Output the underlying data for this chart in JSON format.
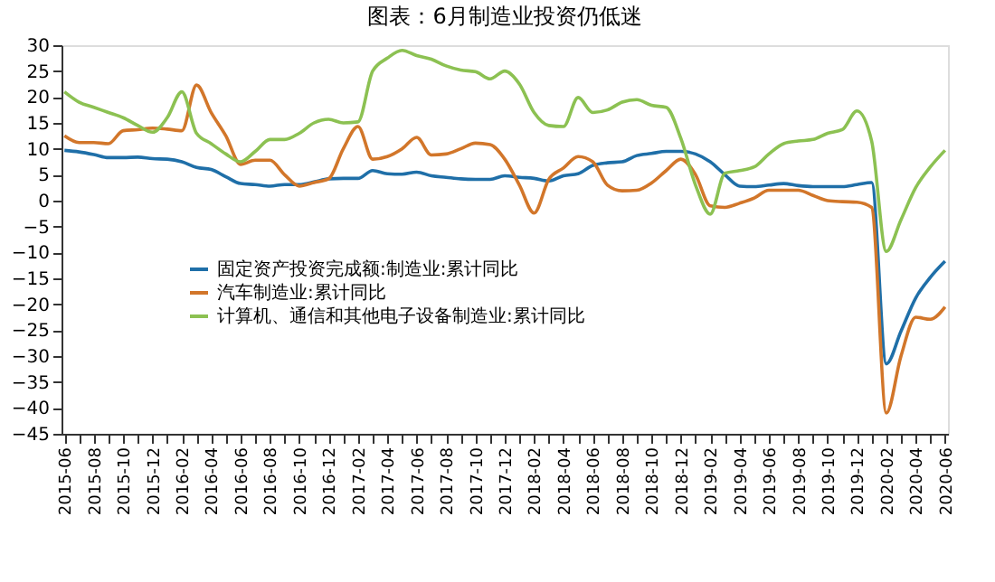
{
  "chart_data": {
    "type": "line",
    "title": "图表：6月制造业投资仍低迷",
    "categories": [
      "2015-06",
      null,
      "2015-08",
      null,
      "2015-10",
      null,
      "2015-12",
      null,
      "2016-02",
      null,
      "2016-04",
      null,
      "2016-06",
      null,
      "2016-08",
      null,
      "2016-10",
      null,
      "2016-12",
      null,
      "2017-02",
      null,
      "2017-04",
      null,
      "2017-06",
      null,
      "2017-08",
      null,
      "2017-10",
      null,
      "2017-12",
      null,
      "2018-02",
      null,
      "2018-04",
      null,
      "2018-06",
      null,
      "2018-08",
      null,
      "2018-10",
      null,
      "2018-12",
      null,
      "2019-02",
      null,
      "2019-04",
      null,
      "2019-06",
      null,
      "2019-08",
      null,
      "2019-10",
      null,
      "2019-12",
      null,
      "2020-02",
      null,
      "2020-04",
      null,
      "2020-06"
    ],
    "series": [
      {
        "name": "固定资产投资完成额:制造业:累计同比",
        "color": "#1f6fa8",
        "values": [
          9.7,
          9.4,
          8.9,
          8.3,
          8.3,
          8.4,
          8.1,
          8.0,
          7.5,
          6.4,
          6.0,
          4.6,
          3.3,
          3.1,
          2.8,
          3.1,
          3.1,
          3.6,
          4.2,
          4.3,
          4.3,
          5.8,
          5.2,
          5.1,
          5.5,
          4.8,
          4.5,
          4.2,
          4.1,
          4.1,
          4.8,
          4.5,
          4.3,
          3.8,
          4.8,
          5.2,
          6.8,
          7.3,
          7.5,
          8.7,
          9.1,
          9.5,
          9.5,
          9.0,
          7.5,
          5.0,
          2.8,
          2.7,
          3.0,
          3.3,
          2.9,
          2.7,
          2.7,
          2.7,
          3.1,
          3.5,
          -31.5,
          -25.2,
          -18.8,
          -14.8,
          -11.7
        ]
      },
      {
        "name": "汽车制造业:累计同比",
        "color": "#d2762a",
        "values": [
          12.5,
          11.2,
          11.2,
          11.0,
          13.5,
          13.7,
          14.0,
          13.8,
          13.5,
          22.3,
          17.0,
          12.5,
          7.0,
          7.8,
          7.8,
          5.0,
          2.8,
          3.5,
          4.2,
          10.0,
          14.3,
          8.0,
          8.5,
          10.0,
          12.2,
          8.8,
          9.0,
          10.0,
          11.1,
          10.8,
          8.0,
          3.0,
          -2.4,
          4.1,
          6.3,
          8.5,
          7.5,
          3.0,
          1.9,
          2.0,
          3.4,
          5.8,
          8.0,
          5.0,
          -1.0,
          -1.3,
          -0.5,
          0.5,
          2.0,
          2.0,
          2.0,
          1.0,
          0,
          -0.2,
          -0.3,
          -1.3,
          -41.0,
          -30.0,
          -22.5,
          -22.9,
          -20.5
        ]
      },
      {
        "name": "计算机、通信和其他电子设备制造业:累计同比",
        "color": "#8cc152",
        "values": [
          21,
          19,
          18,
          17,
          16,
          14.5,
          13.2,
          16,
          21,
          13,
          11,
          9,
          7.5,
          9.5,
          11.8,
          11.8,
          13,
          15,
          15.7,
          15,
          15.2,
          25,
          27.5,
          29,
          28,
          27.3,
          26,
          25.2,
          24.9,
          23.5,
          25,
          22.5,
          17,
          14.5,
          14.3,
          19.9,
          17,
          17.5,
          19,
          19.5,
          18.4,
          18,
          12,
          3,
          -2.6,
          5.3,
          5.8,
          6.5,
          9,
          11,
          11.5,
          11.8,
          13,
          13.7,
          17.3,
          11.5,
          -9.8,
          -3.7,
          2.5,
          6.5,
          9.7
        ]
      }
    ],
    "ylim": [
      -45,
      30
    ],
    "yticks": [
      -45,
      -40,
      -35,
      -30,
      -25,
      -20,
      -15,
      -10,
      -5,
      0,
      5,
      10,
      15,
      20,
      25,
      30
    ],
    "grid": false,
    "legend": "left",
    "marker": "none",
    "line_style": "solid"
  }
}
